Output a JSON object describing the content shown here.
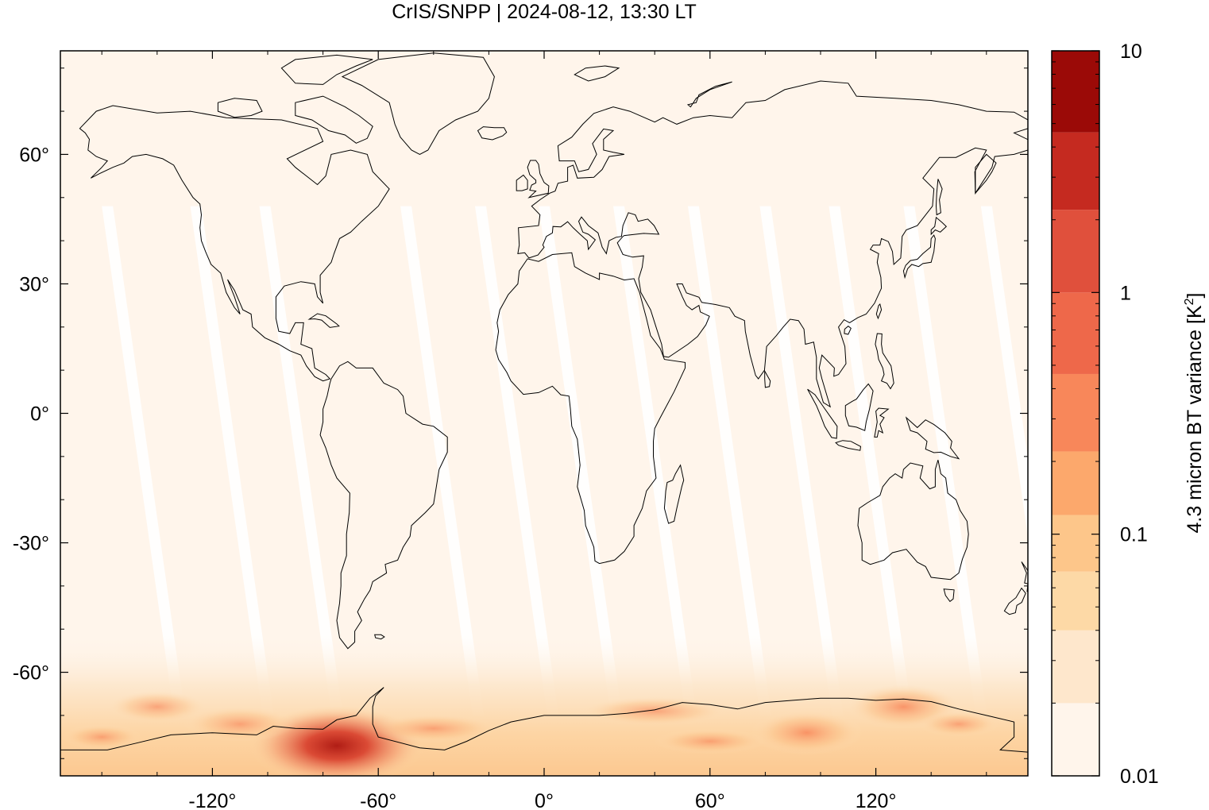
{
  "chart_data": {
    "type": "heatmap",
    "title": "CrIS/SNPP | 2024-08-12, 13:30 LT",
    "xlabel": "",
    "ylabel": "",
    "xlim": [
      -175,
      175
    ],
    "ylim": [
      -84,
      84
    ],
    "x_ticks": [
      {
        "value": -120,
        "label": "-120°"
      },
      {
        "value": -60,
        "label": "-60°"
      },
      {
        "value": 0,
        "label": "0°"
      },
      {
        "value": 60,
        "label": "60°"
      },
      {
        "value": 120,
        "label": "120°"
      }
    ],
    "y_ticks": [
      {
        "value": 60,
        "label": "60°"
      },
      {
        "value": 30,
        "label": "30°"
      },
      {
        "value": 0,
        "label": "0°"
      },
      {
        "value": -30,
        "label": "-30°"
      },
      {
        "value": -60,
        "label": "-60°"
      }
    ],
    "colorbar": {
      "label": "4.3 micron BT variance [K",
      "label_sup": "2",
      "label_end": "]",
      "scale": "log",
      "range": [
        0.01,
        10
      ],
      "ticks": [
        {
          "value": 10,
          "label": "10"
        },
        {
          "value": 1,
          "label": "1"
        },
        {
          "value": 0.1,
          "label": "0.1"
        },
        {
          "value": 0.01,
          "label": "0.01"
        }
      ],
      "levels": [
        0.01,
        0.02,
        0.04,
        0.07,
        0.12,
        0.22,
        0.46,
        1.0,
        2.2,
        4.6,
        10
      ],
      "colors": [
        "#fff5eb",
        "#fee7cc",
        "#fdd9a6",
        "#fdc68a",
        "#fca86c",
        "#f8875a",
        "#ee684a",
        "#e0503c",
        "#c52a20",
        "#9b0a07"
      ]
    },
    "background_value": 0.01,
    "features": [
      {
        "name": "antarctic-peninsula-hotspot",
        "lon": -75,
        "lat": -77,
        "value": 6.0
      },
      {
        "name": "southern-ocean-band",
        "lon_range": [
          -175,
          175
        ],
        "lat_range": [
          -84,
          -60
        ],
        "value": 0.08
      },
      {
        "name": "indian-ocean-hotspot",
        "lon": 130,
        "lat": -68,
        "value": 0.5
      },
      {
        "name": "weddell-hotspot",
        "lon": 95,
        "lat": -74,
        "value": 0.4
      }
    ],
    "colors": {
      "background": "#fff5eb",
      "coastline": "#000000",
      "gap": "#ffffff"
    }
  }
}
